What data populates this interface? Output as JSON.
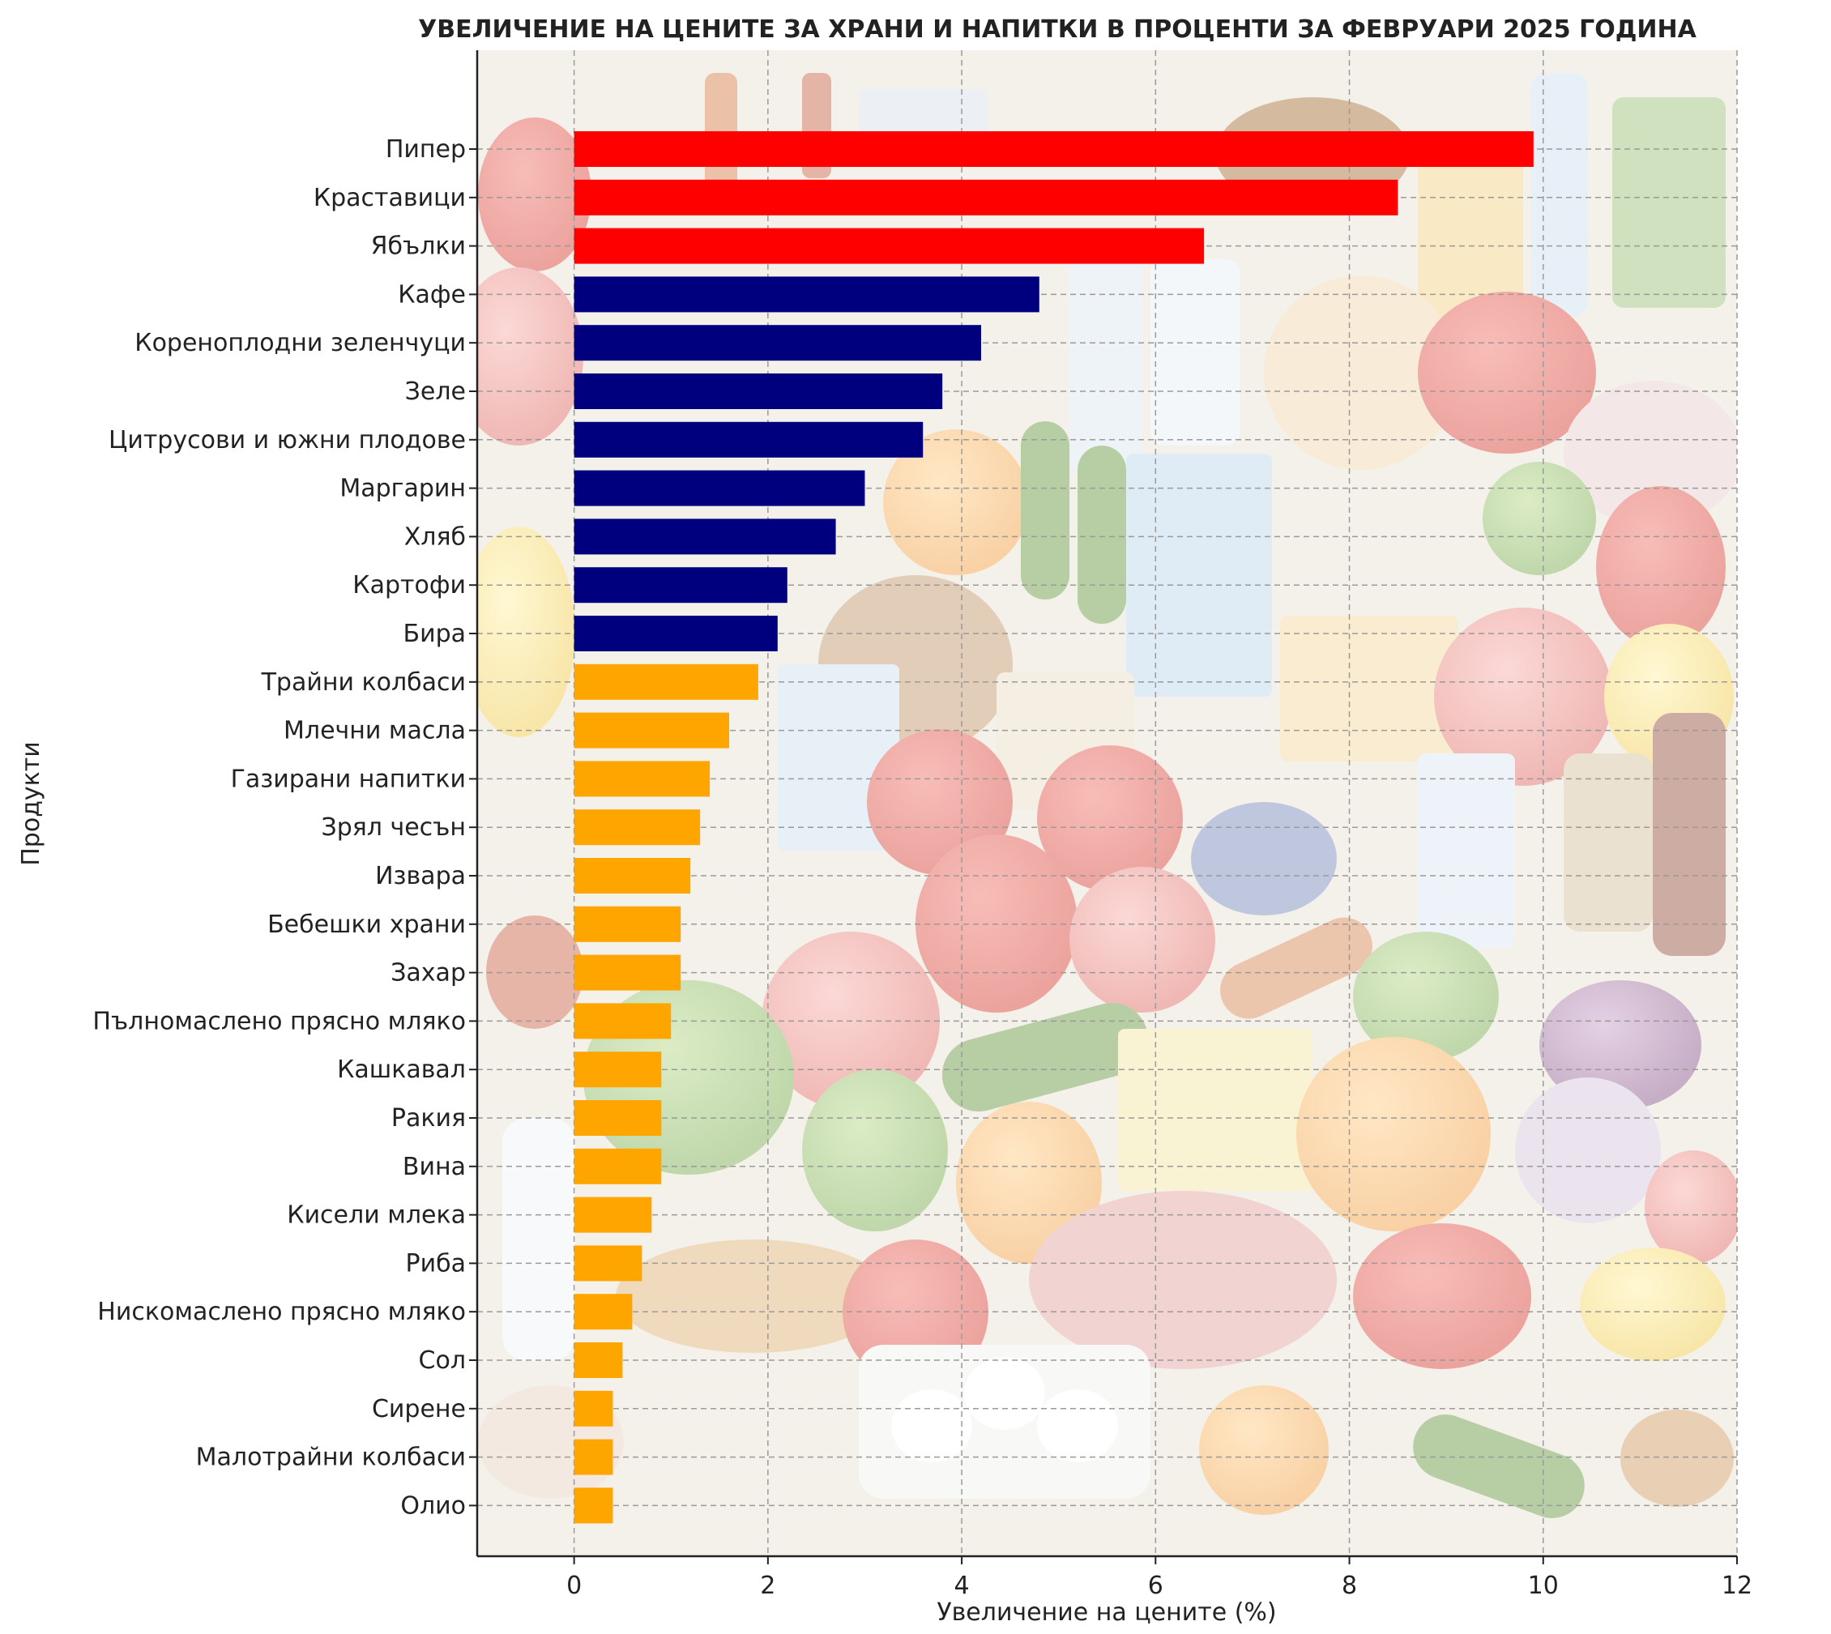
{
  "chart_data": {
    "type": "bar",
    "orientation": "horizontal",
    "title": "УВЕЛИЧЕНИЕ НА ЦЕНИТЕ ЗА ХРАНИ И НАПИТКИ В ПРОЦЕНТИ ЗА ФЕВРУАРИ 2025 ГОДИНА",
    "xlabel": "Увеличение на цените (%)",
    "ylabel": "Продукти",
    "xlim": [
      -1,
      12
    ],
    "xticks": [
      "0",
      "2",
      "4",
      "6",
      "8",
      "10",
      "12"
    ],
    "grid": true,
    "background": "photo of assorted groceries (fruits, vegetables, dairy, drinks) faded behind the plot area",
    "colors": {
      "top": "#ff0000",
      "mid": "#00007f",
      "low": "#ffa500"
    },
    "categories": [
      "Пипер",
      "Краставици",
      "Ябълки",
      "Кафе",
      "Кореноплодни зеленчуци",
      "Зеле",
      "Цитрусови и южни плодове",
      "Маргарин",
      "Хляб",
      "Картофи",
      "Бира",
      "Трайни колбаси",
      "Млечни масла",
      "Газирани напитки",
      "Зрял чесън",
      "Извара",
      "Бебешки храни",
      "Захар",
      "Пълномаслено прясно мляко",
      "Кашкавал",
      "Ракия",
      "Вина",
      "Кисели млека",
      "Риба",
      "Нискомаслено прясно мляко",
      "Сол",
      "Сирене",
      "Малотрайни колбаси",
      "Олио"
    ],
    "values": [
      9.9,
      8.5,
      6.5,
      4.8,
      4.2,
      3.8,
      3.6,
      3.0,
      2.7,
      2.2,
      2.1,
      1.9,
      1.6,
      1.4,
      1.3,
      1.2,
      1.1,
      1.1,
      1.0,
      0.9,
      0.9,
      0.9,
      0.8,
      0.7,
      0.6,
      0.5,
      0.4,
      0.4,
      0.4
    ],
    "bar_groups": [
      "top",
      "top",
      "top",
      "mid",
      "mid",
      "mid",
      "mid",
      "mid",
      "mid",
      "mid",
      "mid",
      "low",
      "low",
      "low",
      "low",
      "low",
      "low",
      "low",
      "low",
      "low",
      "low",
      "low",
      "low",
      "low",
      "low",
      "low",
      "low",
      "low",
      "low"
    ]
  }
}
